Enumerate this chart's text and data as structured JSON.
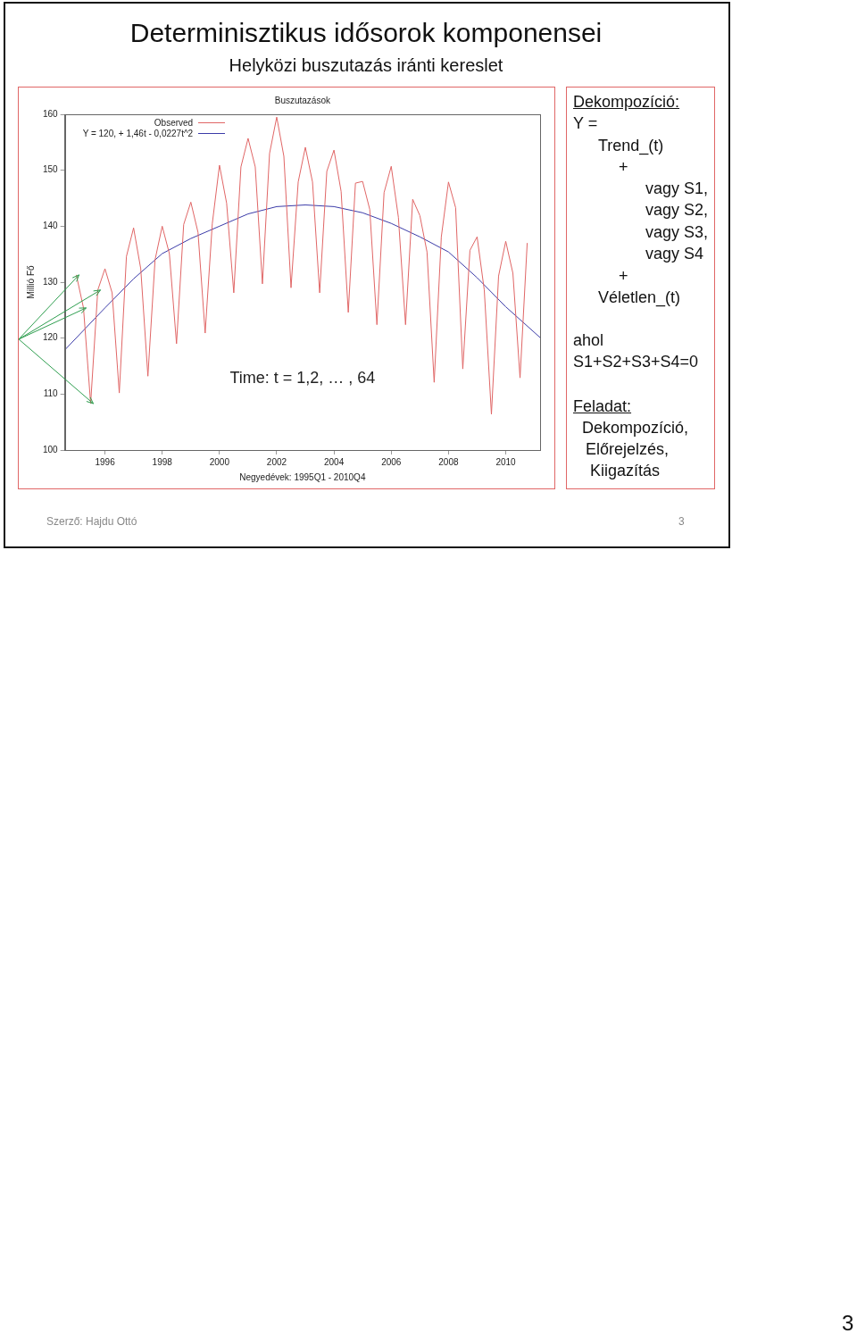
{
  "chart_data": {
    "type": "line",
    "title": "Determinisztikus idősorok komponensei",
    "subtitle": "Helyközi buszutazás iránti kereslet",
    "xlabel": "Negyedévek: 1995Q1 - 2010Q4",
    "ylabel": "Millió Fő",
    "xlim": [
      1994.6,
      2011.2
    ],
    "xticks": [
      1996,
      1998,
      2000,
      2002,
      2004,
      2006,
      2008,
      2010
    ],
    "ylim": [
      100,
      160
    ],
    "yticks": [
      100,
      110,
      120,
      130,
      140,
      150,
      160
    ],
    "grid": false,
    "legend": "top left",
    "marker": "none",
    "line_style": "solid",
    "series": [
      {
        "name": "Observed",
        "color": "#e06666",
        "x": [
          1995,
          1995.25,
          1995.5,
          1995.75,
          1996,
          1996.25,
          1996.5,
          1996.75,
          1997,
          1997.25,
          1997.5,
          1997.75,
          1998,
          1998.25,
          1998.5,
          1998.75,
          1999,
          1999.25,
          1999.5,
          1999.75,
          2000,
          2000.25,
          2000.5,
          2000.75,
          2001,
          2001.25,
          2001.5,
          2001.75,
          2002,
          2002.25,
          2002.5,
          2002.75,
          2003,
          2003.25,
          2003.5,
          2003.75,
          2004,
          2004.25,
          2004.5,
          2004.75,
          2005,
          2005.25,
          2005.5,
          2005.75,
          2006,
          2006.25,
          2006.5,
          2006.75,
          2007,
          2007.25,
          2007.5,
          2007.75,
          2008,
          2008.25,
          2008.5,
          2008.75,
          2009,
          2009.25,
          2009.5,
          2009.75,
          2010,
          2010.25,
          2010.5,
          2010.75
        ],
        "values": [
          131.3,
          125.4,
          108.3,
          128.6,
          132.4,
          128.1,
          110.2,
          134.6,
          139.7,
          132.4,
          113.2,
          134.0,
          140.0,
          135.1,
          119.0,
          140.3,
          144.3,
          138.9,
          120.9,
          140.5,
          150.9,
          144.1,
          128.1,
          150.6,
          155.7,
          150.6,
          129.7,
          153.0,
          159.5,
          152.5,
          129.0,
          147.9,
          154.1,
          147.9,
          128.1,
          149.8,
          153.6,
          146.2,
          124.6,
          147.7,
          148.0,
          143.0,
          122.4,
          146.0,
          150.7,
          141.6,
          122.4,
          144.8,
          141.9,
          135.4,
          112.1,
          138.1,
          147.9,
          143.3,
          114.5,
          135.7,
          138.1,
          128.6,
          106.4,
          131.1,
          137.3,
          131.6,
          112.9,
          137.0
        ]
      },
      {
        "name": "Y = 120, + 1,46t - 0,0227t^2",
        "color": "#3b3ba8",
        "x": [
          1994.6,
          1996,
          1997,
          1998,
          1999,
          2000,
          2001,
          2002,
          2003,
          2004,
          2005,
          2006,
          2007,
          2008,
          2009,
          2010,
          2011.2
        ],
        "values": [
          117.9,
          125.4,
          130.6,
          135.1,
          137.8,
          140.0,
          142.2,
          143.5,
          143.8,
          143.5,
          142.4,
          140.5,
          138.1,
          135.4,
          130.8,
          125.6,
          120.1
        ]
      }
    ],
    "annotations": [
      "Buszutazások",
      "Time: t = 1,2, … , 64",
      "Dekompozíció:",
      "Y =",
      "Trend_(t)",
      "+",
      "vagy S1,",
      "vagy S2,",
      "vagy S3,",
      "vagy S4",
      "+",
      "Véletlen_(t)",
      "ahol",
      "S1+S2+S3+S4=0",
      "Feladat:",
      "Dekompozíció,",
      "Előrejelzés,",
      "Kiigazítás",
      "Szerző: Hajdu Ottó",
      "3",
      "3"
    ]
  }
}
